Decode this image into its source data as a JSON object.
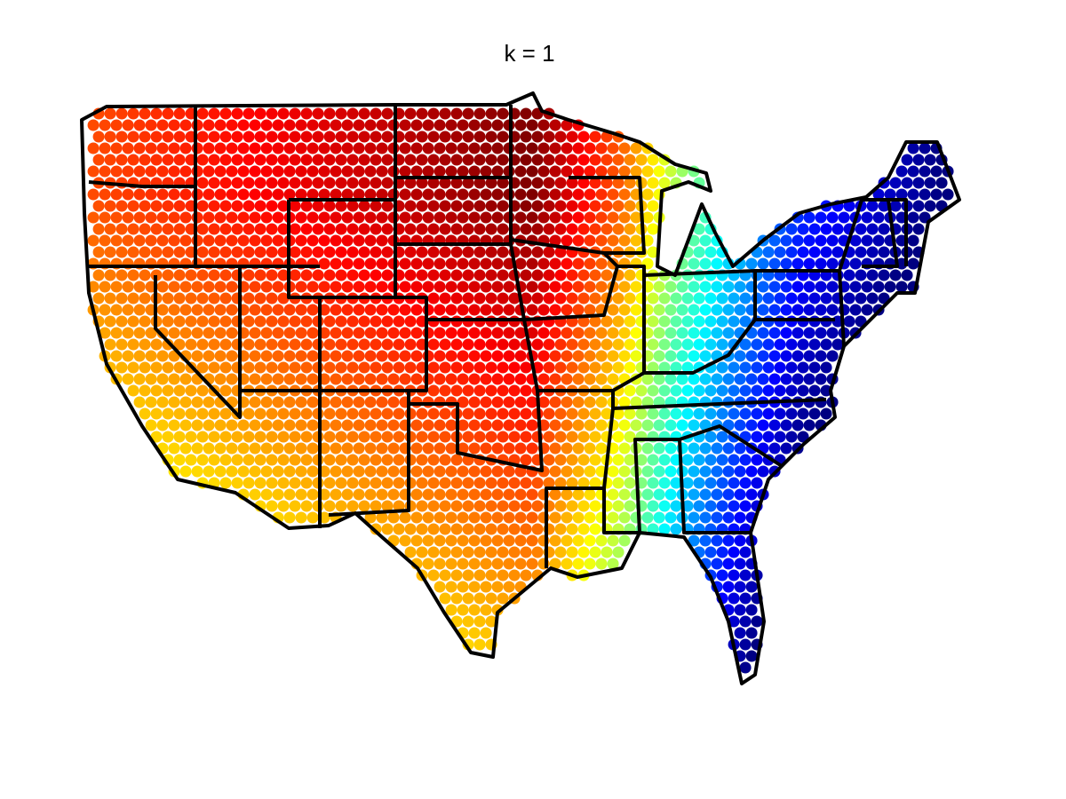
{
  "title": "k = 1"
}
